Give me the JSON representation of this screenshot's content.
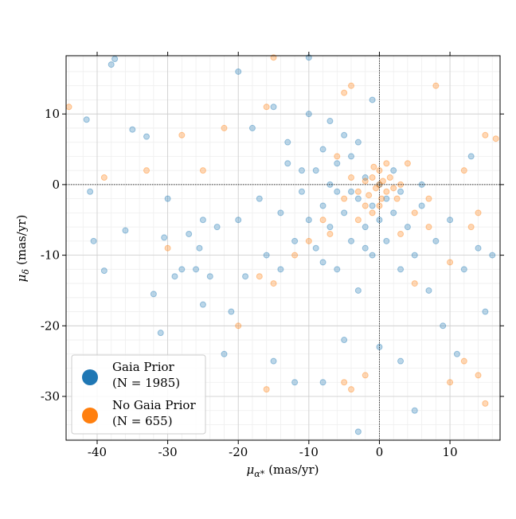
{
  "chart_data": {
    "type": "scatter",
    "xlabel": {
      "symbol": "μ",
      "sub": "α*",
      "unit": "(mas/yr)"
    },
    "ylabel": {
      "symbol": "μ",
      "sub": "δ",
      "unit": "(mas/yr)"
    },
    "xlim": [
      -44.4,
      17.1
    ],
    "ylim": [
      -36.2,
      18.25
    ],
    "xticks": [
      -40,
      -30,
      -20,
      -10,
      0,
      10
    ],
    "yticks": [
      -30,
      -20,
      -10,
      0,
      10
    ],
    "grid": true,
    "minor_step": 2,
    "zero_lines": true,
    "legend": "lower left",
    "series": [
      {
        "name": "Gaia Prior",
        "count_label": "(N = 1985)",
        "color": "#1f77b4",
        "x": [
          -41.5,
          -41,
          -40.5,
          -39,
          -38,
          -37.5,
          -36,
          -35,
          -33,
          -32,
          -31,
          -30.5,
          -30,
          -29,
          -28,
          -27,
          -26,
          -25.5,
          -25,
          -24,
          -23,
          -22,
          -21,
          -20,
          -19,
          -18,
          -17,
          -16,
          -15,
          -14,
          -13,
          -12,
          -11,
          -10,
          -10,
          -9,
          -9,
          -8,
          -8,
          -7,
          -7,
          -6,
          -6,
          -5,
          -5,
          -4,
          -4,
          -3,
          -3,
          -2,
          -2,
          -1,
          -1,
          0,
          0,
          1,
          1,
          2,
          2,
          3,
          4,
          5,
          6,
          7,
          8,
          9,
          10,
          11,
          12,
          13,
          14,
          15,
          16,
          -12,
          -8,
          -3,
          0,
          5,
          -20,
          -10,
          -1,
          -25,
          -15,
          -5,
          3,
          -13,
          -6,
          -4,
          -8,
          -2,
          3,
          6,
          -11,
          -14,
          -7,
          -3
        ],
        "y": [
          9.2,
          -1,
          -8,
          -12.2,
          17,
          17.8,
          -6.5,
          7.8,
          6.8,
          -15.5,
          -21,
          -7.5,
          -2,
          -13,
          -12,
          -7,
          -12,
          -9,
          -17,
          -13,
          -6,
          -24,
          -18,
          -5,
          -13,
          8,
          -2,
          -10,
          11,
          -12,
          3,
          -8,
          -1,
          10,
          -5,
          2,
          -9,
          -3,
          5,
          -6,
          0,
          -12,
          3,
          -4,
          7,
          -1,
          -8,
          -2,
          -15,
          1,
          -6,
          -3,
          -10,
          0,
          -5,
          -2,
          -8,
          2,
          -4,
          -12,
          -6,
          -10,
          -3,
          -15,
          -8,
          -20,
          -5,
          -24,
          -12,
          4,
          -9,
          -18,
          -10,
          -28,
          -28,
          -35,
          -23,
          -32,
          16,
          18,
          12,
          -5,
          -25,
          -22,
          -25,
          6,
          -1,
          4,
          -11,
          -9,
          -1,
          0,
          2,
          -4,
          9,
          6
        ]
      },
      {
        "name": "No Gaia Prior",
        "count_label": "(N = 655)",
        "color": "#ff7f0e",
        "x": [
          0,
          0.5,
          -0.5,
          1,
          -1,
          0.3,
          -1.5,
          1.5,
          -2,
          2,
          0,
          0,
          -1,
          1,
          -3,
          3,
          -2,
          -0.8,
          2.5,
          -4,
          -5,
          -6,
          -7,
          -8,
          -10,
          -12,
          -15,
          -17,
          -20,
          -22,
          -25,
          -28,
          -30,
          -33,
          -39,
          -44,
          -15,
          -16,
          -5,
          -4,
          4,
          5,
          7,
          8,
          10,
          12,
          13,
          14,
          15,
          16.5,
          10,
          -4,
          -16,
          -5,
          -2,
          12,
          14,
          15,
          3,
          5,
          7,
          -3
        ],
        "y": [
          0,
          0.5,
          -0.5,
          -1,
          1,
          -2,
          -1.5,
          1,
          0.5,
          -0.5,
          2,
          -3,
          -4,
          3,
          -1,
          0,
          -3,
          2.5,
          -2,
          1,
          -2,
          4,
          -7,
          -5,
          -8,
          -10,
          -14,
          -13,
          -20,
          8,
          2,
          7,
          -9,
          2,
          1,
          11,
          18,
          11,
          13,
          14,
          3,
          -4,
          -6,
          14,
          -11,
          2,
          -6,
          -4,
          7,
          6.5,
          -28,
          -29,
          -29,
          -28,
          -27,
          -25,
          -27,
          -31,
          -7,
          -14,
          -2,
          -5
        ]
      }
    ]
  }
}
